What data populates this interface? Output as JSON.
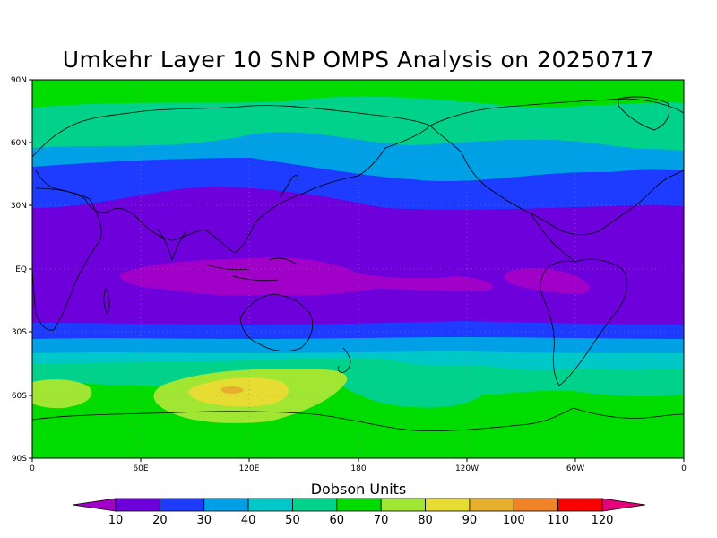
{
  "title": "Umkehr Layer 10 SNP OMPS Analysis on 20250717",
  "y_axis_labels": [
    "90N",
    "60N",
    "30N",
    "EQ",
    "30S",
    "60S",
    "90S"
  ],
  "x_axis_labels": [
    "0",
    "60E",
    "120E",
    "180",
    "120W",
    "60W",
    "0"
  ],
  "colorbar": {
    "title": "Dobson Units",
    "tick_labels": [
      "10",
      "20",
      "30",
      "40",
      "50",
      "60",
      "70",
      "80",
      "90",
      "100",
      "110",
      "120"
    ],
    "colors": [
      "#a000c8",
      "#6e00dc",
      "#1e3cff",
      "#00a0e6",
      "#00c8c8",
      "#00d28c",
      "#00dc00",
      "#a0e632",
      "#e6dc32",
      "#e6af2d",
      "#f08228",
      "#fa0000",
      "#e6007a"
    ]
  },
  "chart_data": {
    "type": "heatmap",
    "title": "Umkehr Layer 10 SNP OMPS Analysis on 20250717",
    "variable_units": "Dobson Units",
    "projection": "cylindrical equidistant",
    "lon_ticks": [
      "0",
      "60E",
      "120E",
      "180",
      "120W",
      "60W",
      "0"
    ],
    "lat_ticks": [
      "90N",
      "60N",
      "30N",
      "EQ",
      "30S",
      "60S",
      "90S"
    ],
    "contour_levels": [
      10,
      20,
      30,
      40,
      50,
      60,
      70,
      80,
      90,
      100,
      110,
      120
    ],
    "approx_zonal_bands": [
      {
        "lat_range": [
          75,
          90
        ],
        "level": "60-70"
      },
      {
        "lat_range": [
          50,
          75
        ],
        "level": "50-60"
      },
      {
        "lat_range": [
          40,
          50
        ],
        "level": "40-50"
      },
      {
        "lat_range": [
          28,
          40
        ],
        "level": "20-30"
      },
      {
        "lat_range": [
          -25,
          28
        ],
        "level": "10-20"
      },
      {
        "lat_range": [
          -8,
          3
        ],
        "level": "<10"
      },
      {
        "lat_range": [
          -33,
          -25
        ],
        "level": "20-30"
      },
      {
        "lat_range": [
          -40,
          -33
        ],
        "level": "30-40"
      },
      {
        "lat_range": [
          -50,
          -40
        ],
        "level": "40-60"
      },
      {
        "lat_range": [
          -90,
          -50
        ],
        "level": "60-70"
      },
      {
        "lat_range": [
          -70,
          -50
        ],
        "level": "70-90",
        "lon_range": [
          60,
          180
        ]
      }
    ]
  }
}
